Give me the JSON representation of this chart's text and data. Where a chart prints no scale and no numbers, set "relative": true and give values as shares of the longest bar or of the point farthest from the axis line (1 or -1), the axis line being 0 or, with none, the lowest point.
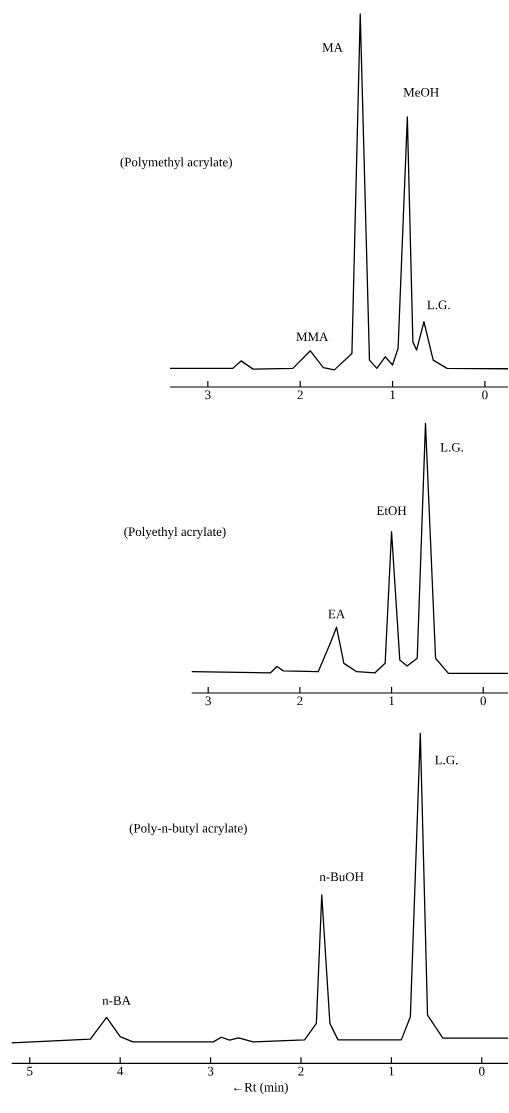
{
  "chart_data": [
    {
      "type": "line",
      "title": "(Polymethyl acrylate)",
      "relative": true,
      "xlim": [
        3.41,
        -0.25
      ],
      "xticks": [
        3,
        2,
        1,
        0
      ],
      "tick_labels": "x",
      "x": [
        3.41,
        2.73,
        2.64,
        2.51,
        2.08,
        1.89,
        1.75,
        1.63,
        1.44,
        1.35,
        1.25,
        1.17,
        1.08,
        1.0,
        0.94,
        0.84,
        0.78,
        0.74,
        0.66,
        0.56,
        0.41,
        -0.25
      ],
      "series": [
        {
          "color": "#000000",
          "values": [
            0.05,
            0.05,
            0.07,
            0.048,
            0.05,
            0.097,
            0.052,
            0.046,
            0.09,
            1.0,
            0.072,
            0.05,
            0.081,
            0.059,
            0.104,
            0.724,
            0.121,
            0.099,
            0.175,
            0.072,
            0.05,
            0.049
          ]
        }
      ],
      "annotations": [
        "MA",
        "MeOH",
        "L.G.",
        "MMA"
      ]
    },
    {
      "type": "line",
      "title": "(Polyethyl acrylate)",
      "relative": true,
      "xlim": [
        3.18,
        -0.27
      ],
      "xticks": [
        3,
        2,
        1,
        0
      ],
      "tick_labels": "x",
      "x": [
        3.18,
        2.32,
        2.25,
        2.18,
        1.8,
        1.67,
        1.6,
        1.52,
        1.38,
        1.18,
        1.07,
        1.0,
        0.91,
        0.83,
        0.72,
        0.63,
        0.52,
        0.38,
        -0.27
      ],
      "series": [
        {
          "color": "#000000",
          "values": [
            0.079,
            0.075,
            0.098,
            0.082,
            0.079,
            0.184,
            0.244,
            0.11,
            0.079,
            0.075,
            0.11,
            0.598,
            0.122,
            0.1,
            0.129,
            1.0,
            0.129,
            0.073,
            0.073
          ]
        }
      ],
      "annotations": [
        "EA",
        "EtOH",
        "L.G."
      ]
    },
    {
      "type": "line",
      "title": "(Poly-n-butyl acrylate)",
      "xlabel": "←Rt (min)",
      "relative": true,
      "xlim": [
        5.2,
        -0.29
      ],
      "xticks": [
        5,
        4,
        3,
        2,
        1,
        0
      ],
      "tick_labels": "x",
      "x": [
        5.2,
        4.33,
        4.15,
        4.0,
        3.86,
        2.97,
        2.88,
        2.79,
        2.69,
        2.53,
        1.96,
        1.83,
        1.77,
        1.68,
        1.59,
        0.89,
        0.79,
        0.68,
        0.6,
        0.43,
        -0.29
      ],
      "series": [
        {
          "color": "#000000",
          "values": [
            0.062,
            0.073,
            0.139,
            0.081,
            0.065,
            0.065,
            0.079,
            0.07,
            0.077,
            0.065,
            0.071,
            0.121,
            0.51,
            0.121,
            0.071,
            0.071,
            0.141,
            1.0,
            0.146,
            0.076,
            0.076
          ]
        }
      ],
      "annotations": [
        "n-BA",
        "n-BuOH",
        "L.G."
      ]
    }
  ]
}
